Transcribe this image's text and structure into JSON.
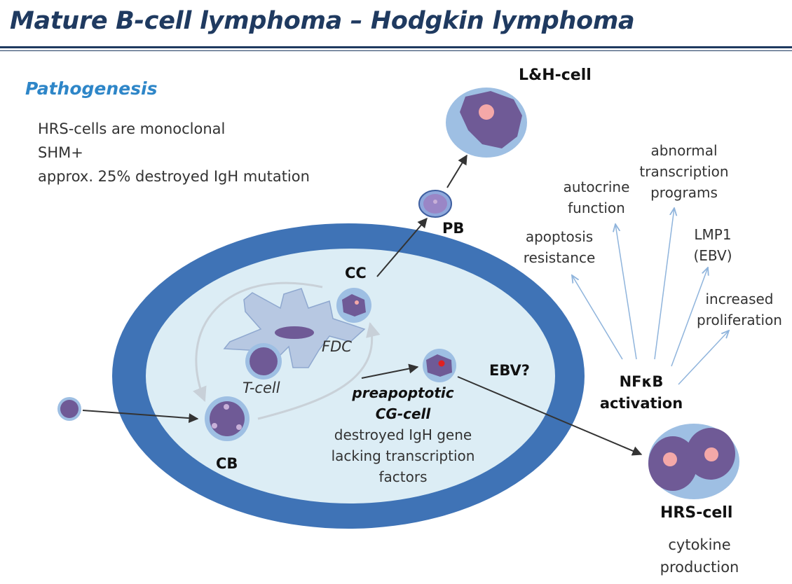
{
  "title": "Mature B-cell lymphoma – Hodgkin lymphoma",
  "section": "Pathogenesis",
  "facts": [
    "HRS-cells are monoclonal",
    "SHM+",
    "approx. 25% destroyed IgH mutation"
  ],
  "cells": {
    "lh": "L&H-cell",
    "pb": "PB",
    "cc": "CC",
    "cb": "CB",
    "fdc": "FDC",
    "tcell": "T-cell",
    "hrs": "HRS-cell",
    "cytokine": [
      "cytokine",
      "production"
    ]
  },
  "preapoptotic": {
    "title": [
      "preapoptotic",
      "CG-cell"
    ],
    "desc": [
      "destroyed IgH gene",
      "lacking transcription",
      "factors"
    ]
  },
  "ebv": "EBV?",
  "nfkb": [
    "NFκB",
    "activation"
  ],
  "effects": {
    "apoptosis": [
      "apoptosis",
      "resistance"
    ],
    "autocrine": [
      "autocrine",
      "function"
    ],
    "abnormal": [
      "abnormal",
      "transcription",
      "programs"
    ],
    "lmp1": [
      "LMP1",
      "(EBV)"
    ],
    "proliferation": [
      "increased",
      "proliferation"
    ]
  },
  "colors": {
    "title": "#1f3a60",
    "subtitle": "#2e86c8",
    "germinal_outer": "#3f73b6",
    "germinal_inner": "#dcedf5",
    "cell_halo": "#9ebfe3",
    "nucleus": "#6f5a96",
    "nucleolus": "#f4a8a8",
    "fdc": "#b7c8e2"
  }
}
